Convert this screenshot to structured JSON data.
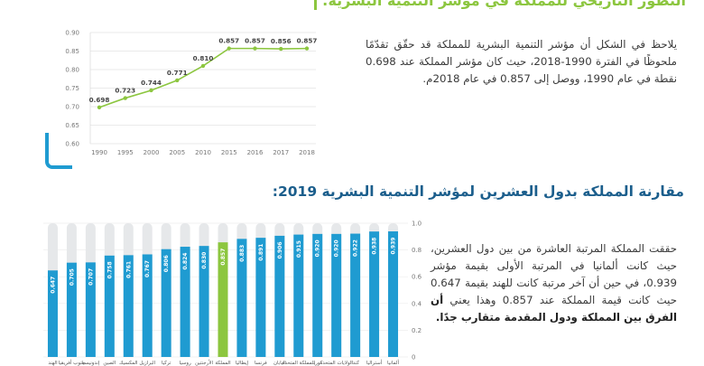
{
  "header": {
    "title": "التطور التاريخي للمملكة في مؤشر التنمية البشرية:"
  },
  "section2": {
    "title": "مقارنة المملكة بدول العشرين لمؤشر التنمية البشرية 2019:"
  },
  "paragraph1": "يلاحظ في الشكل أن مؤشر التنمية البشرية للمملكة قد حقّق تقدّمًا ملحوظًا في الفترة 1990-2018، حيث كان مؤشر المملكة عند 0.698 نقطة في عام 1990، ووصل إلى 0.857 في عام 2018م.",
  "paragraph2": {
    "text": "حققت المملكة المرتبة العاشرة من بين دول العشرين، حيث كانت ألمانيا في المرتبة الأولى بقيمة مؤشر 0.939، في حين أن آخر مرتبة كانت للهند بقيمة 0.647 حيث كانت قيمة المملكة عند 0.857 وهذا يعني ",
    "bold": "أن الفرق بين المملكة ودول المقدمة متقارب جدًا."
  },
  "colors": {
    "line": "#8cc63f",
    "bar_blue": "#1f9bd1",
    "bar_highlight": "#8cc63f",
    "bar_bg": "#e6e8ea",
    "title_blue": "#1b5e8c"
  },
  "chart_data": [
    {
      "type": "line",
      "x": [
        "1990",
        "1995",
        "2000",
        "2005",
        "2010",
        "2015",
        "2016",
        "2017",
        "2018"
      ],
      "values": [
        0.698,
        0.723,
        0.744,
        0.771,
        0.81,
        0.857,
        0.857,
        0.856,
        0.857
      ],
      "value_labels": [
        "0.698",
        "0.723",
        "0.744",
        "0.771",
        "0.810",
        "0.857",
        "0.857",
        "0.856",
        "0.857"
      ],
      "yticks": [
        "0.60",
        "0.65",
        "0.70",
        "0.75",
        "0.80",
        "0.85",
        "0.90"
      ],
      "ylim": [
        0.6,
        0.9
      ],
      "grid": true
    },
    {
      "type": "bar",
      "categories": [
        "الهند",
        "جنوب أفريقيا",
        "إندونيسيا",
        "الصين",
        "المكسيك",
        "البرازيل",
        "تركيا",
        "روسيا",
        "الأرجنتين",
        "المملكة",
        "إيطاليا",
        "فرنسا",
        "اليابان",
        "المملكة المتحدة",
        "كوريا",
        "الولايات المتحدة",
        "كندا",
        "أستراليا",
        "ألمانيا"
      ],
      "values": [
        0.647,
        0.705,
        0.707,
        0.758,
        0.761,
        0.767,
        0.806,
        0.824,
        0.83,
        0.857,
        0.883,
        0.891,
        0.906,
        0.915,
        0.92,
        0.92,
        0.922,
        0.938,
        0.939
      ],
      "value_labels": [
        "0.647",
        "0.705",
        "0.707",
        "0.758",
        "0.761",
        "0.767",
        "0.806",
        "0.824",
        "0.830",
        "0.857",
        "0.883",
        "0.891",
        "0.906",
        "0.915",
        "0.920",
        "0.920",
        "0.922",
        "0.938",
        "0.939"
      ],
      "highlight": "المملكة",
      "yticks": [
        "0",
        "0.2",
        "0.4",
        "0.6",
        "0.8",
        "1.0"
      ],
      "ylim": [
        0,
        1.0
      ]
    }
  ]
}
